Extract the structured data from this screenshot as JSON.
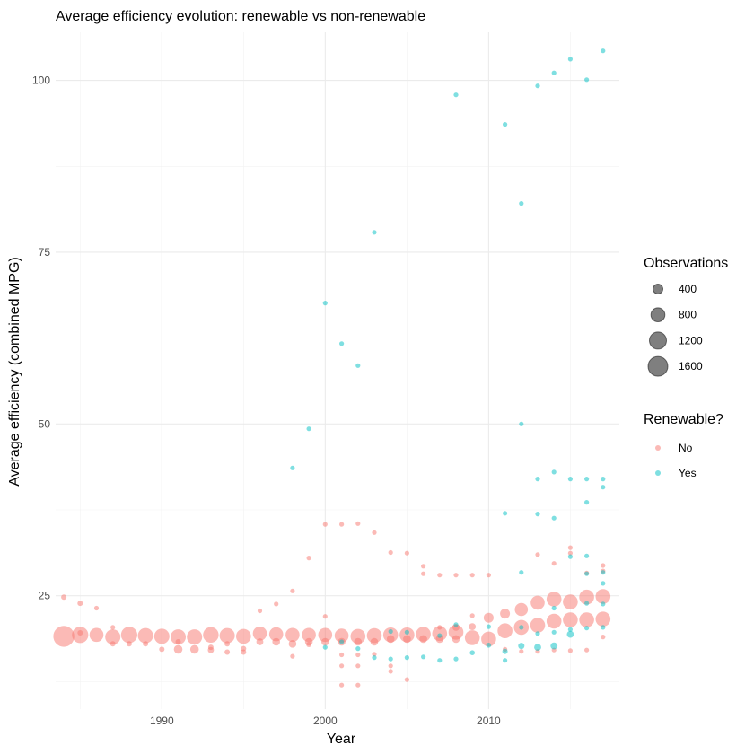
{
  "chart_data": {
    "type": "scatter",
    "title": "Average efficiency evolution: renewable vs non-renewable",
    "xlabel": "Year",
    "ylabel": "Average efficiency (combined MPG)",
    "xlim": [
      1983.5,
      2018
    ],
    "ylim": [
      8.5,
      107
    ],
    "x_ticks": [
      1990,
      2000,
      2010
    ],
    "y_ticks": [
      25,
      50,
      75,
      100
    ],
    "grid": true,
    "size_legend": {
      "title": "Observations",
      "entries": [
        {
          "label": "400",
          "value": 400
        },
        {
          "label": "800",
          "value": 800
        },
        {
          "label": "1200",
          "value": 1200
        },
        {
          "label": "1600",
          "value": 1600
        }
      ]
    },
    "color_legend": {
      "title": "Renewable?",
      "entries": [
        {
          "label": "No",
          "color": "#F8766D"
        },
        {
          "label": "Yes",
          "color": "#00BFC4"
        }
      ]
    },
    "legend_position": "right",
    "series": [
      {
        "name": "No",
        "color": "#F8766D",
        "points": [
          {
            "x": 1984,
            "y": 24.8,
            "n": 120
          },
          {
            "x": 1984,
            "y": 19.1,
            "n": 1800
          },
          {
            "x": 1985,
            "y": 23.9,
            "n": 120
          },
          {
            "x": 1985,
            "y": 19.6,
            "n": 120
          },
          {
            "x": 1985,
            "y": 19.3,
            "n": 1100
          },
          {
            "x": 1986,
            "y": 23.2,
            "n": 90
          },
          {
            "x": 1986,
            "y": 19.3,
            "n": 800
          },
          {
            "x": 1987,
            "y": 20.4,
            "n": 90
          },
          {
            "x": 1987,
            "y": 19.0,
            "n": 950
          },
          {
            "x": 1987,
            "y": 18.0,
            "n": 120
          },
          {
            "x": 1988,
            "y": 19.3,
            "n": 1100
          },
          {
            "x": 1988,
            "y": 18.0,
            "n": 120
          },
          {
            "x": 1989,
            "y": 19.2,
            "n": 950
          },
          {
            "x": 1989,
            "y": 18.0,
            "n": 120
          },
          {
            "x": 1990,
            "y": 19.1,
            "n": 950
          },
          {
            "x": 1990,
            "y": 17.2,
            "n": 120
          },
          {
            "x": 1991,
            "y": 19.0,
            "n": 950
          },
          {
            "x": 1991,
            "y": 18.3,
            "n": 120
          },
          {
            "x": 1991,
            "y": 17.2,
            "n": 300
          },
          {
            "x": 1992,
            "y": 19.0,
            "n": 950
          },
          {
            "x": 1992,
            "y": 17.2,
            "n": 300
          },
          {
            "x": 1993,
            "y": 19.3,
            "n": 1000
          },
          {
            "x": 1993,
            "y": 17.5,
            "n": 120
          },
          {
            "x": 1993,
            "y": 17.1,
            "n": 150
          },
          {
            "x": 1994,
            "y": 19.2,
            "n": 950
          },
          {
            "x": 1994,
            "y": 18.0,
            "n": 120
          },
          {
            "x": 1994,
            "y": 16.8,
            "n": 120
          },
          {
            "x": 1995,
            "y": 19.1,
            "n": 900
          },
          {
            "x": 1995,
            "y": 17.3,
            "n": 120
          },
          {
            "x": 1995,
            "y": 16.8,
            "n": 120
          },
          {
            "x": 1996,
            "y": 22.8,
            "n": 60
          },
          {
            "x": 1996,
            "y": 19.5,
            "n": 800
          },
          {
            "x": 1996,
            "y": 18.3,
            "n": 200
          },
          {
            "x": 1997,
            "y": 23.8,
            "n": 60
          },
          {
            "x": 1997,
            "y": 19.4,
            "n": 800
          },
          {
            "x": 1997,
            "y": 18.3,
            "n": 250
          },
          {
            "x": 1998,
            "y": 25.7,
            "n": 60
          },
          {
            "x": 1998,
            "y": 19.3,
            "n": 800
          },
          {
            "x": 1998,
            "y": 18.0,
            "n": 250
          },
          {
            "x": 1998,
            "y": 16.2,
            "n": 40
          },
          {
            "x": 1999,
            "y": 30.5,
            "n": 60
          },
          {
            "x": 1999,
            "y": 19.3,
            "n": 800
          },
          {
            "x": 1999,
            "y": 18.3,
            "n": 250
          },
          {
            "x": 1999,
            "y": 17.9,
            "n": 120
          },
          {
            "x": 2000,
            "y": 35.4,
            "n": 60
          },
          {
            "x": 2000,
            "y": 22.0,
            "n": 40
          },
          {
            "x": 2000,
            "y": 19.3,
            "n": 800
          },
          {
            "x": 2000,
            "y": 18.3,
            "n": 250
          },
          {
            "x": 2001,
            "y": 35.4,
            "n": 40
          },
          {
            "x": 2001,
            "y": 19.2,
            "n": 800
          },
          {
            "x": 2001,
            "y": 18.3,
            "n": 250
          },
          {
            "x": 2001,
            "y": 16.4,
            "n": 40
          },
          {
            "x": 2001,
            "y": 14.8,
            "n": 40
          },
          {
            "x": 2001,
            "y": 12.0,
            "n": 40
          },
          {
            "x": 2002,
            "y": 35.5,
            "n": 40
          },
          {
            "x": 2002,
            "y": 19.1,
            "n": 900
          },
          {
            "x": 2002,
            "y": 18.3,
            "n": 250
          },
          {
            "x": 2002,
            "y": 16.4,
            "n": 40
          },
          {
            "x": 2002,
            "y": 14.8,
            "n": 40
          },
          {
            "x": 2002,
            "y": 12.0,
            "n": 40
          },
          {
            "x": 2003,
            "y": 34.2,
            "n": 40
          },
          {
            "x": 2003,
            "y": 19.2,
            "n": 900
          },
          {
            "x": 2003,
            "y": 18.3,
            "n": 250
          },
          {
            "x": 2003,
            "y": 16.5,
            "n": 40
          },
          {
            "x": 2004,
            "y": 31.3,
            "n": 40
          },
          {
            "x": 2004,
            "y": 19.3,
            "n": 900
          },
          {
            "x": 2004,
            "y": 18.7,
            "n": 250
          },
          {
            "x": 2004,
            "y": 14.8,
            "n": 40
          },
          {
            "x": 2004,
            "y": 14.0,
            "n": 40
          },
          {
            "x": 2005,
            "y": 31.2,
            "n": 40
          },
          {
            "x": 2005,
            "y": 19.3,
            "n": 900
          },
          {
            "x": 2005,
            "y": 18.7,
            "n": 250
          },
          {
            "x": 2005,
            "y": 12.8,
            "n": 40
          },
          {
            "x": 2006,
            "y": 29.3,
            "n": 40
          },
          {
            "x": 2006,
            "y": 28.2,
            "n": 40
          },
          {
            "x": 2006,
            "y": 19.4,
            "n": 900
          },
          {
            "x": 2006,
            "y": 18.7,
            "n": 250
          },
          {
            "x": 2007,
            "y": 28.0,
            "n": 40
          },
          {
            "x": 2007,
            "y": 20.4,
            "n": 40
          },
          {
            "x": 2007,
            "y": 19.5,
            "n": 900
          },
          {
            "x": 2007,
            "y": 18.7,
            "n": 250
          },
          {
            "x": 2008,
            "y": 28.0,
            "n": 40
          },
          {
            "x": 2008,
            "y": 20.4,
            "n": 200
          },
          {
            "x": 2008,
            "y": 19.7,
            "n": 900
          },
          {
            "x": 2008,
            "y": 18.7,
            "n": 250
          },
          {
            "x": 2009,
            "y": 28.0,
            "n": 40
          },
          {
            "x": 2009,
            "y": 22.1,
            "n": 40
          },
          {
            "x": 2009,
            "y": 20.5,
            "n": 200
          },
          {
            "x": 2009,
            "y": 18.9,
            "n": 900
          },
          {
            "x": 2010,
            "y": 28.0,
            "n": 40
          },
          {
            "x": 2010,
            "y": 21.8,
            "n": 400
          },
          {
            "x": 2010,
            "y": 18.7,
            "n": 900
          },
          {
            "x": 2011,
            "y": 22.4,
            "n": 400
          },
          {
            "x": 2011,
            "y": 19.9,
            "n": 900
          },
          {
            "x": 2011,
            "y": 17.2,
            "n": 40
          },
          {
            "x": 2012,
            "y": 23.0,
            "n": 700
          },
          {
            "x": 2012,
            "y": 20.4,
            "n": 900
          },
          {
            "x": 2012,
            "y": 16.9,
            "n": 40
          },
          {
            "x": 2013,
            "y": 31.0,
            "n": 40
          },
          {
            "x": 2013,
            "y": 24.0,
            "n": 800
          },
          {
            "x": 2013,
            "y": 20.7,
            "n": 900
          },
          {
            "x": 2013,
            "y": 16.9,
            "n": 40
          },
          {
            "x": 2014,
            "y": 29.7,
            "n": 40
          },
          {
            "x": 2014,
            "y": 24.5,
            "n": 900
          },
          {
            "x": 2014,
            "y": 21.3,
            "n": 900
          },
          {
            "x": 2014,
            "y": 17.1,
            "n": 40
          },
          {
            "x": 2015,
            "y": 32.0,
            "n": 40
          },
          {
            "x": 2015,
            "y": 31.2,
            "n": 40
          },
          {
            "x": 2015,
            "y": 24.1,
            "n": 900
          },
          {
            "x": 2015,
            "y": 21.5,
            "n": 900
          },
          {
            "x": 2015,
            "y": 17.0,
            "n": 40
          },
          {
            "x": 2016,
            "y": 28.3,
            "n": 40
          },
          {
            "x": 2016,
            "y": 24.8,
            "n": 900
          },
          {
            "x": 2016,
            "y": 21.5,
            "n": 900
          },
          {
            "x": 2016,
            "y": 17.1,
            "n": 40
          },
          {
            "x": 2017,
            "y": 29.4,
            "n": 40
          },
          {
            "x": 2017,
            "y": 28.6,
            "n": 40
          },
          {
            "x": 2017,
            "y": 24.9,
            "n": 900
          },
          {
            "x": 2017,
            "y": 21.6,
            "n": 900
          },
          {
            "x": 2017,
            "y": 19.0,
            "n": 40
          }
        ]
      },
      {
        "name": "Yes",
        "color": "#00BFC4",
        "points": [
          {
            "x": 1998,
            "y": 43.6,
            "n": 20
          },
          {
            "x": 1999,
            "y": 49.3,
            "n": 30
          },
          {
            "x": 2000,
            "y": 67.6,
            "n": 30
          },
          {
            "x": 2000,
            "y": 17.5,
            "n": 40
          },
          {
            "x": 2001,
            "y": 61.7,
            "n": 30
          },
          {
            "x": 2001,
            "y": 18.3,
            "n": 40
          },
          {
            "x": 2002,
            "y": 58.5,
            "n": 20
          },
          {
            "x": 2002,
            "y": 17.3,
            "n": 60
          },
          {
            "x": 2003,
            "y": 77.9,
            "n": 20
          },
          {
            "x": 2003,
            "y": 16.0,
            "n": 60
          },
          {
            "x": 2004,
            "y": 19.8,
            "n": 40
          },
          {
            "x": 2004,
            "y": 15.8,
            "n": 60
          },
          {
            "x": 2005,
            "y": 19.7,
            "n": 40
          },
          {
            "x": 2005,
            "y": 16.0,
            "n": 60
          },
          {
            "x": 2006,
            "y": 16.1,
            "n": 60
          },
          {
            "x": 2007,
            "y": 19.2,
            "n": 40
          },
          {
            "x": 2007,
            "y": 15.6,
            "n": 60
          },
          {
            "x": 2008,
            "y": 97.9,
            "n": 20
          },
          {
            "x": 2008,
            "y": 20.8,
            "n": 40
          },
          {
            "x": 2008,
            "y": 15.8,
            "n": 60
          },
          {
            "x": 2009,
            "y": 16.7,
            "n": 100
          },
          {
            "x": 2010,
            "y": 20.5,
            "n": 40
          },
          {
            "x": 2010,
            "y": 17.8,
            "n": 100
          },
          {
            "x": 2011,
            "y": 93.6,
            "n": 20
          },
          {
            "x": 2011,
            "y": 37.0,
            "n": 20
          },
          {
            "x": 2011,
            "y": 16.9,
            "n": 120
          },
          {
            "x": 2011,
            "y": 15.6,
            "n": 40
          },
          {
            "x": 2012,
            "y": 82.1,
            "n": 30
          },
          {
            "x": 2012,
            "y": 50.0,
            "n": 20
          },
          {
            "x": 2012,
            "y": 28.4,
            "n": 30
          },
          {
            "x": 2012,
            "y": 20.4,
            "n": 40
          },
          {
            "x": 2012,
            "y": 17.7,
            "n": 160
          },
          {
            "x": 2013,
            "y": 99.2,
            "n": 40
          },
          {
            "x": 2013,
            "y": 42.0,
            "n": 30
          },
          {
            "x": 2013,
            "y": 36.9,
            "n": 20
          },
          {
            "x": 2013,
            "y": 19.5,
            "n": 40
          },
          {
            "x": 2013,
            "y": 17.5,
            "n": 200
          },
          {
            "x": 2014,
            "y": 101.1,
            "n": 40
          },
          {
            "x": 2014,
            "y": 43.0,
            "n": 30
          },
          {
            "x": 2014,
            "y": 36.3,
            "n": 30
          },
          {
            "x": 2014,
            "y": 23.2,
            "n": 30
          },
          {
            "x": 2014,
            "y": 19.7,
            "n": 50
          },
          {
            "x": 2014,
            "y": 17.7,
            "n": 200
          },
          {
            "x": 2015,
            "y": 103.1,
            "n": 40
          },
          {
            "x": 2015,
            "y": 42.0,
            "n": 30
          },
          {
            "x": 2015,
            "y": 30.7,
            "n": 30
          },
          {
            "x": 2015,
            "y": 20.1,
            "n": 50
          },
          {
            "x": 2015,
            "y": 19.4,
            "n": 200
          },
          {
            "x": 2016,
            "y": 100.1,
            "n": 50
          },
          {
            "x": 2016,
            "y": 42.0,
            "n": 30
          },
          {
            "x": 2016,
            "y": 38.6,
            "n": 30
          },
          {
            "x": 2016,
            "y": 30.8,
            "n": 30
          },
          {
            "x": 2016,
            "y": 28.2,
            "n": 30
          },
          {
            "x": 2016,
            "y": 23.9,
            "n": 30
          },
          {
            "x": 2016,
            "y": 20.3,
            "n": 50
          },
          {
            "x": 2017,
            "y": 104.3,
            "n": 40
          },
          {
            "x": 2017,
            "y": 42.0,
            "n": 30
          },
          {
            "x": 2017,
            "y": 40.8,
            "n": 30
          },
          {
            "x": 2017,
            "y": 28.4,
            "n": 30
          },
          {
            "x": 2017,
            "y": 26.8,
            "n": 30
          },
          {
            "x": 2017,
            "y": 23.8,
            "n": 30
          },
          {
            "x": 2017,
            "y": 20.4,
            "n": 60
          }
        ]
      }
    ]
  }
}
